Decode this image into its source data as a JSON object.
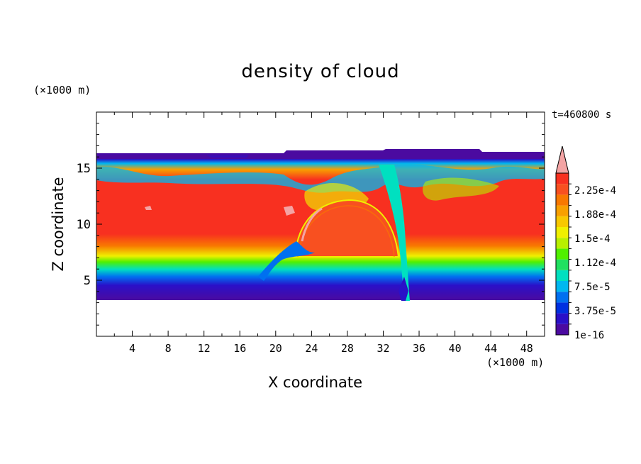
{
  "chart_data": {
    "type": "heatmap",
    "title": "density of cloud",
    "xlabel": "X coordinate",
    "ylabel": "Z coordinate",
    "x_unit": "(×1000 m)",
    "y_unit": "(×1000 m)",
    "time_label": "t=460800 s",
    "xlim": [
      0,
      50
    ],
    "ylim": [
      0,
      20
    ],
    "x_ticks": [
      "4",
      "8",
      "12",
      "16",
      "20",
      "24",
      "28",
      "32",
      "36",
      "40",
      "44",
      "48"
    ],
    "y_ticks": [
      "5",
      "10",
      "15"
    ],
    "colorbar": {
      "labels": [
        "2.25e-4",
        "1.88e-4",
        "1.5e-4",
        "1.12e-4",
        "7.5e-5",
        "3.75e-5",
        "1e-16"
      ],
      "colors": [
        "#4b0aa0",
        "#2a10c8",
        "#0030e0",
        "#0070f0",
        "#00b8f0",
        "#00e0c0",
        "#20e060",
        "#50f000",
        "#b8f000",
        "#f0f000",
        "#f8c800",
        "#f8a000",
        "#f87800",
        "#f85020",
        "#f83020"
      ],
      "overflow_color": "#f4a4a4"
    },
    "cloud_layer": {
      "bottom_z": 3.5,
      "top_z": 16,
      "core_value_approx": 0.00024,
      "updraft_x": 34
    }
  }
}
